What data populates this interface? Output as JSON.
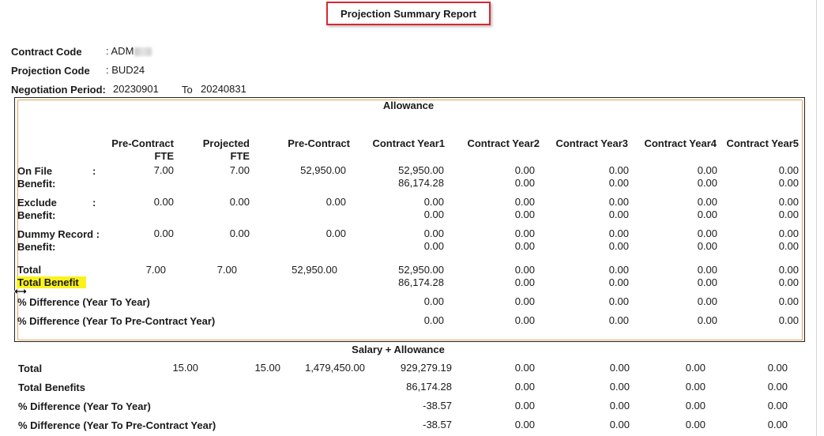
{
  "report": {
    "title": "Projection Summary Report",
    "contract_code_label": "Contract Code",
    "contract_code_value": ": ADM",
    "projection_code_label": "Projection Code",
    "projection_code_value": ": BUD24",
    "negotiation_label": "Negotiation Period:",
    "period_from": "20230901",
    "period_to_label": "To",
    "period_to": "20240831"
  },
  "allowance": {
    "section_title": "Allowance",
    "headers": {
      "pre_contract_fte_1": "Pre-Contract",
      "pre_contract_fte_2": "FTE",
      "projected_fte_1": "Projected",
      "projected_fte_2": "FTE",
      "pre_contract": "Pre-Contract",
      "year1": "Contract Year1",
      "year2": "Contract Year2",
      "year3": "Contract Year3",
      "year4": "Contract Year4",
      "year5": "Contract Year5"
    },
    "rows": [
      {
        "label": "On File",
        "colon": ":",
        "benefit_label": "Benefit:",
        "pre_fte": "7.00",
        "proj_fte": "7.00",
        "pre": "52,950.00",
        "y1": "52,950.00",
        "y2": "0.00",
        "y3": "0.00",
        "y4": "0.00",
        "y5": "0.00",
        "b1": "86,174.28",
        "b2": "0.00",
        "b3": "0.00",
        "b4": "0.00",
        "b5": "0.00"
      },
      {
        "label": "Exclude",
        "colon": ":",
        "benefit_label": "Benefit:",
        "pre_fte": "0.00",
        "proj_fte": "0.00",
        "pre": "0.00",
        "y1": "0.00",
        "y2": "0.00",
        "y3": "0.00",
        "y4": "0.00",
        "y5": "0.00",
        "b1": "0.00",
        "b2": "0.00",
        "b3": "0.00",
        "b4": "0.00",
        "b5": "0.00"
      },
      {
        "label": "Dummy Record :",
        "colon": "",
        "benefit_label": "Benefit:",
        "pre_fte": "0.00",
        "proj_fte": "0.00",
        "pre": "0.00",
        "y1": "0.00",
        "y2": "0.00",
        "y3": "0.00",
        "y4": "0.00",
        "y5": "0.00",
        "b1": "0.00",
        "b2": "0.00",
        "b3": "0.00",
        "b4": "0.00",
        "b5": "0.00"
      }
    ],
    "total": {
      "label": "Total",
      "pre_fte": "7.00",
      "proj_fte": "7.00",
      "pre": "52,950.00",
      "y1": "52,950.00",
      "y2": "0.00",
      "y3": "0.00",
      "y4": "0.00",
      "y5": "0.00"
    },
    "total_benefit": {
      "label": "Total Benefit",
      "y1": "86,174.28",
      "y2": "0.00",
      "y3": "0.00",
      "y4": "0.00",
      "y5": "0.00"
    },
    "diff_yty": {
      "label": "% Difference (Year To Year)",
      "y1": "0.00",
      "y2": "0.00",
      "y3": "0.00",
      "y4": "0.00",
      "y5": "0.00"
    },
    "diff_ytp": {
      "label": "% Difference (Year To Pre-Contract  Year)",
      "y1": "0.00",
      "y2": "0.00",
      "y3": "0.00",
      "y4": "0.00",
      "y5": "0.00"
    }
  },
  "salary": {
    "section_title": "Salary + Allowance",
    "total": {
      "label": "Total",
      "pre_fte": "15.00",
      "proj_fte": "15.00",
      "pre": "1,479,450.00",
      "y1": "929,279.19",
      "y2": "0.00",
      "y3": "0.00",
      "y4": "0.00",
      "y5": "0.00"
    },
    "total_benefits": {
      "label": "Total Benefits",
      "y1": "86,174.28",
      "y2": "0.00",
      "y3": "0.00",
      "y4": "0.00",
      "y5": "0.00"
    },
    "diff_yty": {
      "label": "% Difference (Year To Year)",
      "y1": "-38.57",
      "y2": "0.00",
      "y3": "0.00",
      "y4": "0.00",
      "y5": "0.00"
    },
    "diff_ytp": {
      "label": "% Difference (Year To Pre-Contract Year)",
      "y1": "-38.57",
      "y2": "0.00",
      "y3": "0.00",
      "y4": "0.00",
      "y5": "0.00"
    }
  }
}
